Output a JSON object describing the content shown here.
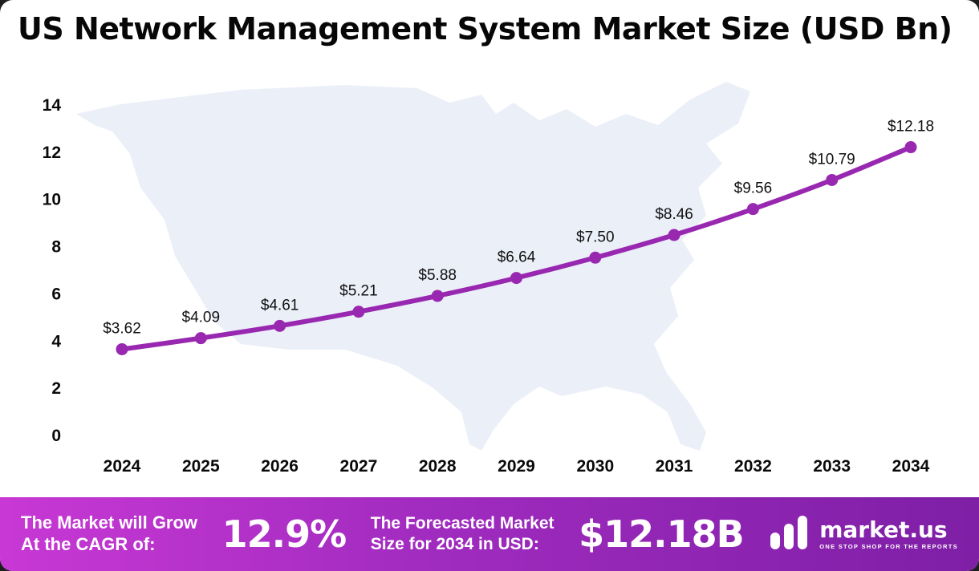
{
  "title": "US Network Management System Market Size (USD Bn)",
  "chart_data": {
    "type": "line",
    "title": "US Network Management System Market Size (USD Bn)",
    "x": [
      2024,
      2025,
      2026,
      2027,
      2028,
      2029,
      2030,
      2031,
      2032,
      2033,
      2034
    ],
    "series": [
      {
        "name": "Market Size (USD Bn)",
        "values": [
          3.62,
          4.09,
          4.61,
          5.21,
          5.88,
          6.64,
          7.5,
          8.46,
          9.56,
          10.79,
          12.18
        ]
      }
    ],
    "point_labels": [
      "$3.62",
      "$4.09",
      "$4.61",
      "$5.21",
      "$5.88",
      "$6.64",
      "$7.50",
      "$8.46",
      "$9.56",
      "$10.79",
      "$12.18"
    ],
    "ylim": [
      0,
      14
    ],
    "yticks": [
      0,
      2,
      4,
      6,
      8,
      10,
      12,
      14
    ],
    "grid": false,
    "legend": "none",
    "line_color": "#9928b1",
    "marker_color": "#9928b1",
    "background": "us-map-silhouette"
  },
  "footer": {
    "cagr_label_line1": "The Market will Grow",
    "cagr_label_line2": "At the CAGR of:",
    "cagr_value": "12.9%",
    "forecast_label_line1": "The Forecasted Market",
    "forecast_label_line2": "Size for 2034 in USD:",
    "forecast_value": "$12.18B",
    "brand_name": "market.us",
    "brand_tagline": "ONE STOP SHOP FOR THE REPORTS"
  },
  "colors": {
    "line": "#9928b1",
    "map_fill": "#ebeff8",
    "footer_gradient_start": "#c838d4",
    "footer_gradient_end": "#7e1fa6",
    "text": "#070707"
  }
}
